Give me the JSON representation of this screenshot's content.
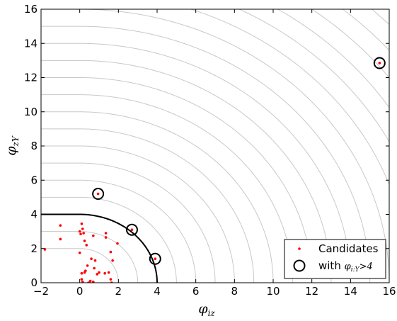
{
  "chart_data": {
    "type": "scatter",
    "xlabel": "φiz",
    "ylabel": "φzY",
    "xlim": [
      -2,
      16
    ],
    "ylim": [
      0,
      16
    ],
    "x_ticks": [
      -2,
      0,
      2,
      4,
      6,
      8,
      10,
      12,
      14,
      16
    ],
    "y_ticks": [
      0,
      2,
      4,
      6,
      8,
      10,
      12,
      14,
      16
    ],
    "contours": {
      "color": "#c8c8c8",
      "radii": [
        2,
        3,
        4,
        5,
        6,
        7,
        8,
        9,
        10,
        11,
        12,
        13,
        14,
        15,
        16,
        17,
        18,
        19,
        20,
        21,
        22
      ],
      "highlight_radius": 4,
      "highlight_color": "#000000"
    },
    "series": [
      {
        "name": "Candidates",
        "marker": "dot",
        "color": "#ff0000",
        "points": [
          [
            -1.8,
            1.95
          ],
          [
            -1.0,
            3.35
          ],
          [
            -1.0,
            2.55
          ],
          [
            0.0,
            3.0
          ],
          [
            0.05,
            2.85
          ],
          [
            0.1,
            3.45
          ],
          [
            0.15,
            3.15
          ],
          [
            0.2,
            2.9
          ],
          [
            0.25,
            2.45
          ],
          [
            0.35,
            2.2
          ],
          [
            0.0,
            1.75
          ],
          [
            0.4,
            1.0
          ],
          [
            0.6,
            1.4
          ],
          [
            0.8,
            1.3
          ],
          [
            0.7,
            2.75
          ],
          [
            0.75,
            0.85
          ],
          [
            0.9,
            0.5
          ],
          [
            1.0,
            0.6
          ],
          [
            1.3,
            0.55
          ],
          [
            1.5,
            0.6
          ],
          [
            1.6,
            1.8
          ],
          [
            1.7,
            1.3
          ],
          [
            1.95,
            2.3
          ],
          [
            1.35,
            2.9
          ],
          [
            1.35,
            2.65
          ],
          [
            0.1,
            0.2
          ],
          [
            0.25,
            0.6
          ],
          [
            0.1,
            0.55
          ],
          [
            0.45,
            0.0
          ],
          [
            0.55,
            0.1
          ],
          [
            0.7,
            0.05
          ],
          [
            1.6,
            0.2
          ],
          [
            1.65,
            0.0
          ],
          [
            0.3,
            0.7
          ],
          [
            0.15,
            0.05
          ],
          [
            0.95,
            5.2
          ],
          [
            2.7,
            3.1
          ],
          [
            3.9,
            1.4
          ],
          [
            15.5,
            12.85
          ]
        ]
      },
      {
        "name": "with φi:Y>4",
        "marker": "circle",
        "color": "#000000",
        "points": [
          [
            0.95,
            5.2
          ],
          [
            2.7,
            3.1
          ],
          [
            3.9,
            1.4
          ],
          [
            15.5,
            12.85
          ]
        ]
      }
    ],
    "legend": {
      "position": "bottom-right",
      "entries": [
        "Candidates",
        "with φi:Y>4"
      ]
    },
    "grid": false
  }
}
